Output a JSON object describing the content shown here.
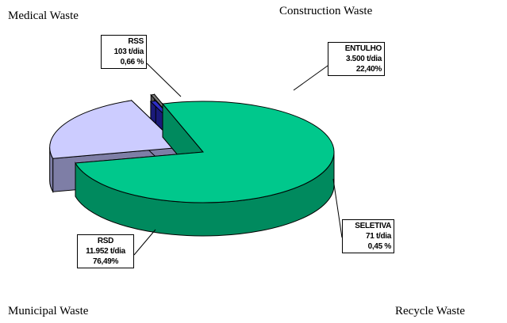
{
  "chart_data": {
    "type": "pie",
    "title": "",
    "categories": [
      "RSD",
      "ENTULHO",
      "RSS",
      "SELETIVA"
    ],
    "series": [
      {
        "values": [
          11952,
          3500,
          103,
          71
        ],
        "labels": [
          [
            "RSD",
            "11.952 t/dia",
            "76,49%"
          ],
          [
            "ENTULHO",
            "3.500 t/dia",
            "22,40%"
          ],
          [
            "RSS",
            "103 t/dia",
            "0,66 %"
          ],
          [
            "SELETIVA",
            "71 t/dia",
            "0,45 %"
          ]
        ]
      }
    ],
    "corner_labels": {
      "medical": "Medical Waste",
      "construction": "Construction Waste",
      "municipal": "Municipal Waste",
      "recycle": "Recycle Waste"
    },
    "colors": {
      "RSD_top": "#00c88c",
      "RSD_side": "#008a5e",
      "ENTULHO_top": "#ccccff",
      "ENTULHO_side": "#7e7ea6",
      "RSS_top": "#2e2ec4",
      "RSS_side": "#1a1a7a",
      "SELETIVA_top": "#7a7a7a",
      "SELETIVA_side": "#555555"
    }
  }
}
